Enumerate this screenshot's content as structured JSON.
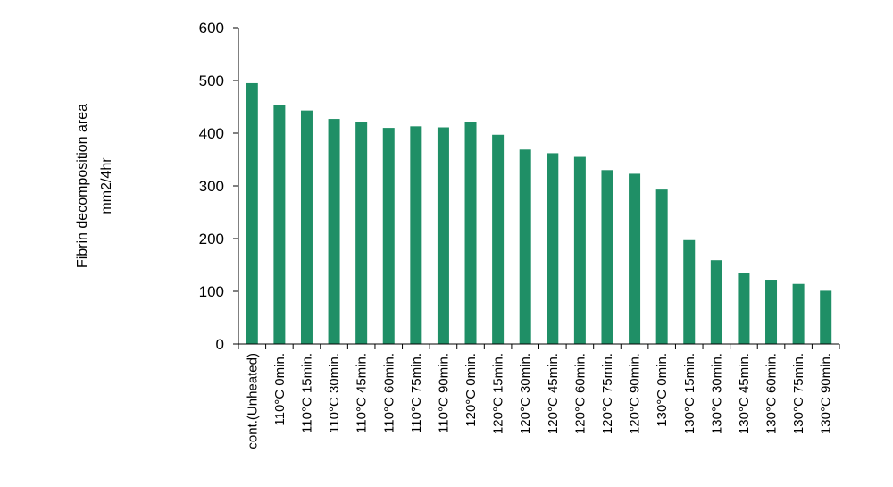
{
  "chart_data": {
    "type": "bar",
    "title": "",
    "xlabel": "",
    "ylabel_lines": [
      "Fibrin decomposition area",
      "mm2/4hr"
    ],
    "ylim": [
      0,
      600
    ],
    "yticks": [
      0,
      100,
      200,
      300,
      400,
      500,
      600
    ],
    "grid": false,
    "legend": "none",
    "bar_color": "#1f8f66",
    "categories": [
      "cont.(Unheated)",
      "110°C 0min.",
      "110°C 15min.",
      "110°C 30min.",
      "110°C 45min.",
      "110°C 60min.",
      "110°C 75min.",
      "110°C 90min.",
      "120°C 0min.",
      "120°C 15min.",
      "120°C 30min.",
      "120°C 45min.",
      "120°C 60min.",
      "120°C 75min.",
      "120°C 90min.",
      "130°C 0min.",
      "130°C 15min.",
      "130°C 30min.",
      "130°C 45min.",
      "130°C 60min.",
      "130°C 75min.",
      "130°C 90min."
    ],
    "values": [
      495,
      453,
      443,
      427,
      421,
      410,
      413,
      411,
      421,
      397,
      369,
      362,
      355,
      330,
      323,
      293,
      197,
      159,
      134,
      122,
      114,
      101
    ]
  }
}
